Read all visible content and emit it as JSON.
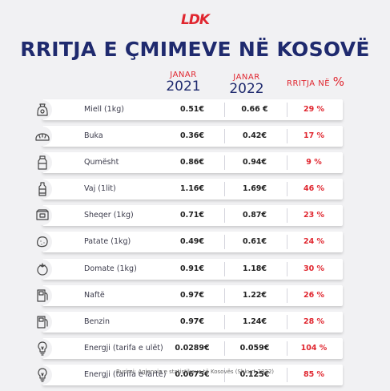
{
  "logo": "LDK",
  "title": "RRITJA E ÇMIMEVE NË KOSOVË",
  "columns": {
    "col1_month": "JANAR",
    "col1_year": "2021",
    "col2_month": "JANAR",
    "col2_year": "2022",
    "col3_label": "RRITJA NË",
    "col3_pct": "%"
  },
  "rows": [
    {
      "icon": "flour-sack-icon",
      "label": "Miell (1kg)",
      "v2021": "0.51€",
      "v2022": "0.66 €",
      "increase": "29 %"
    },
    {
      "icon": "bread-icon",
      "label": "Buka",
      "v2021": "0.36€",
      "v2022": "0.42€",
      "increase": "17 %"
    },
    {
      "icon": "milk-icon",
      "label": "Qumësht",
      "v2021": "0.86€",
      "v2022": "0.94€",
      "increase": "9 %"
    },
    {
      "icon": "oil-bottle-icon",
      "label": "Vaj (1lit)",
      "v2021": "1.16€",
      "v2022": "1.69€",
      "increase": "46 %"
    },
    {
      "icon": "sugar-icon",
      "label": "Sheqer (1kg)",
      "v2021": "0.71€",
      "v2022": "0.87€",
      "increase": "23 %"
    },
    {
      "icon": "potato-icon",
      "label": "Patate (1kg)",
      "v2021": "0.49€",
      "v2022": "0.61€",
      "increase": "24 %"
    },
    {
      "icon": "tomato-icon",
      "label": "Domate (1kg)",
      "v2021": "0.91€",
      "v2022": "1.18€",
      "increase": "30 %"
    },
    {
      "icon": "fuel-pump-icon",
      "label": "Naftë",
      "v2021": "0.97€",
      "v2022": "1.22€",
      "increase": "26 %"
    },
    {
      "icon": "fuel-pump-icon",
      "label": "Benzin",
      "v2021": "0.97€",
      "v2022": "1.24€",
      "increase": "28 %"
    },
    {
      "icon": "lightbulb-icon",
      "label": "Energji (tarifa e ulët)",
      "v2021": "0.0289€",
      "v2022": "0.059€",
      "increase": "104 %"
    },
    {
      "icon": "lightbulb-icon",
      "label": "Energji (tarifa e lartë)",
      "v2021": "0.0675€",
      "v2022": "0.125€",
      "increase": "85 %"
    }
  ],
  "source": "Burimi: Agjencia e statistikave të Kosovës (Shkurt 2022)",
  "colors": {
    "accent": "#e0262f",
    "title": "#1f2a6e",
    "background": "#f1f1f3"
  }
}
